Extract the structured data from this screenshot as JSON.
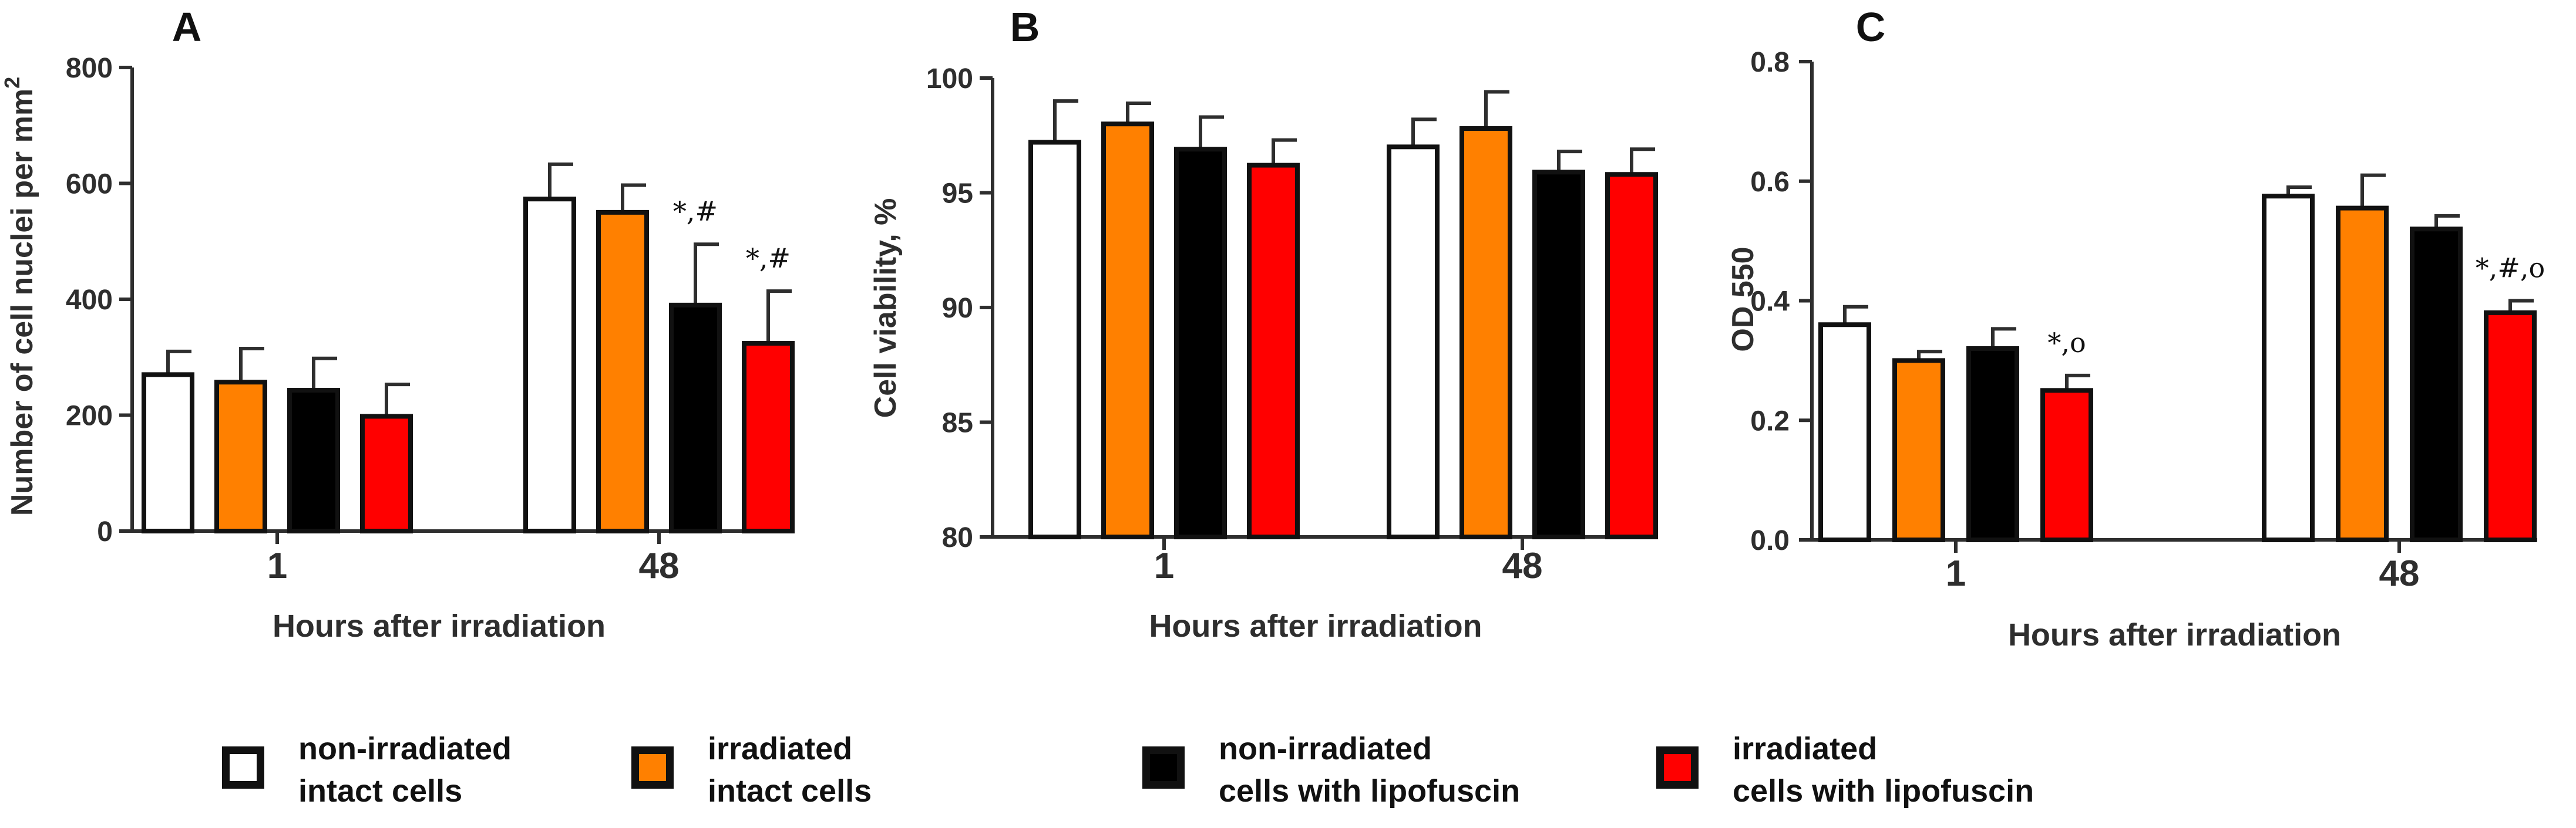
{
  "colors": {
    "white": "#ffffff",
    "orange": "#ff8000",
    "black": "#000000",
    "red": "#ff0000",
    "axis": "#2e2e2e"
  },
  "legend": [
    {
      "line1": "non-irradiated",
      "line2": "intact cells",
      "color": "#ffffff"
    },
    {
      "line1": "irradiated",
      "line2": "intact cells",
      "color": "#ff8000"
    },
    {
      "line1": "non-irradiated",
      "line2": "cells with lipofuscin",
      "color": "#000000"
    },
    {
      "line1": "irradiated",
      "line2": "cells with lipofuscin",
      "color": "#ff0000"
    }
  ],
  "chart_data": [
    {
      "panel": "A",
      "type": "bar",
      "title": "",
      "xlabel": "Hours after irradiation",
      "ylabel": "Number of cell nuclei per mm",
      "ylabel_superscript": "2",
      "ylim": [
        0,
        800
      ],
      "yticks": [
        "0",
        "200",
        "400",
        "600",
        "800"
      ],
      "categories": [
        "1",
        "48"
      ],
      "series": [
        {
          "name": "non-irradiated intact cells",
          "values": [
            270,
            573
          ],
          "errors": [
            40,
            60
          ]
        },
        {
          "name": "irradiated intact cells",
          "values": [
            257,
            550
          ],
          "errors": [
            58,
            47
          ]
        },
        {
          "name": "non-irradiated cells with lipofuscin",
          "values": [
            243,
            390
          ],
          "errors": [
            55,
            105
          ]
        },
        {
          "name": "irradiated cells with lipofuscin",
          "values": [
            198,
            324
          ],
          "errors": [
            55,
            90
          ]
        }
      ],
      "annotations": [
        {
          "category": 1,
          "series": 2,
          "text": "*,#"
        },
        {
          "category": 1,
          "series": 3,
          "text": "*,#"
        }
      ]
    },
    {
      "panel": "B",
      "type": "bar",
      "title": "",
      "xlabel": "Hours after irradiation",
      "ylabel": "Cell viability, %",
      "ylim": [
        80,
        100
      ],
      "yticks": [
        "80",
        "85",
        "90",
        "95",
        "100"
      ],
      "categories": [
        "1",
        "48"
      ],
      "series": [
        {
          "name": "non-irradiated intact cells",
          "values": [
            97.2,
            97.0
          ],
          "errors": [
            1.8,
            1.2
          ]
        },
        {
          "name": "irradiated intact cells",
          "values": [
            98.0,
            97.8
          ],
          "errors": [
            0.9,
            1.6
          ]
        },
        {
          "name": "non-irradiated cells with lipofuscin",
          "values": [
            96.9,
            95.9
          ],
          "errors": [
            1.4,
            0.9
          ]
        },
        {
          "name": "irradiated cells with lipofuscin",
          "values": [
            96.2,
            95.8
          ],
          "errors": [
            1.1,
            1.1
          ]
        }
      ],
      "annotations": []
    },
    {
      "panel": "C",
      "type": "bar",
      "title": "",
      "xlabel": "Hours after irradiation",
      "ylabel": "OD 550",
      "ylim": [
        0,
        0.8
      ],
      "yticks": [
        "0.0",
        "0.2",
        "0.4",
        "0.6",
        "0.8"
      ],
      "categories": [
        "1",
        "48"
      ],
      "series": [
        {
          "name": "non-irradiated intact cells",
          "values": [
            0.36,
            0.575
          ],
          "errors": [
            0.03,
            0.015
          ]
        },
        {
          "name": "irradiated intact cells",
          "values": [
            0.3,
            0.555
          ],
          "errors": [
            0.015,
            0.055
          ]
        },
        {
          "name": "non-irradiated cells with lipofuscin",
          "values": [
            0.32,
            0.52
          ],
          "errors": [
            0.033,
            0.022
          ]
        },
        {
          "name": "irradiated cells with lipofuscin",
          "values": [
            0.25,
            0.38
          ],
          "errors": [
            0.025,
            0.02
          ]
        }
      ],
      "annotations": [
        {
          "category": 0,
          "series": 3,
          "text": "*,o"
        },
        {
          "category": 1,
          "series": 3,
          "text": "*,#,o"
        }
      ]
    }
  ]
}
